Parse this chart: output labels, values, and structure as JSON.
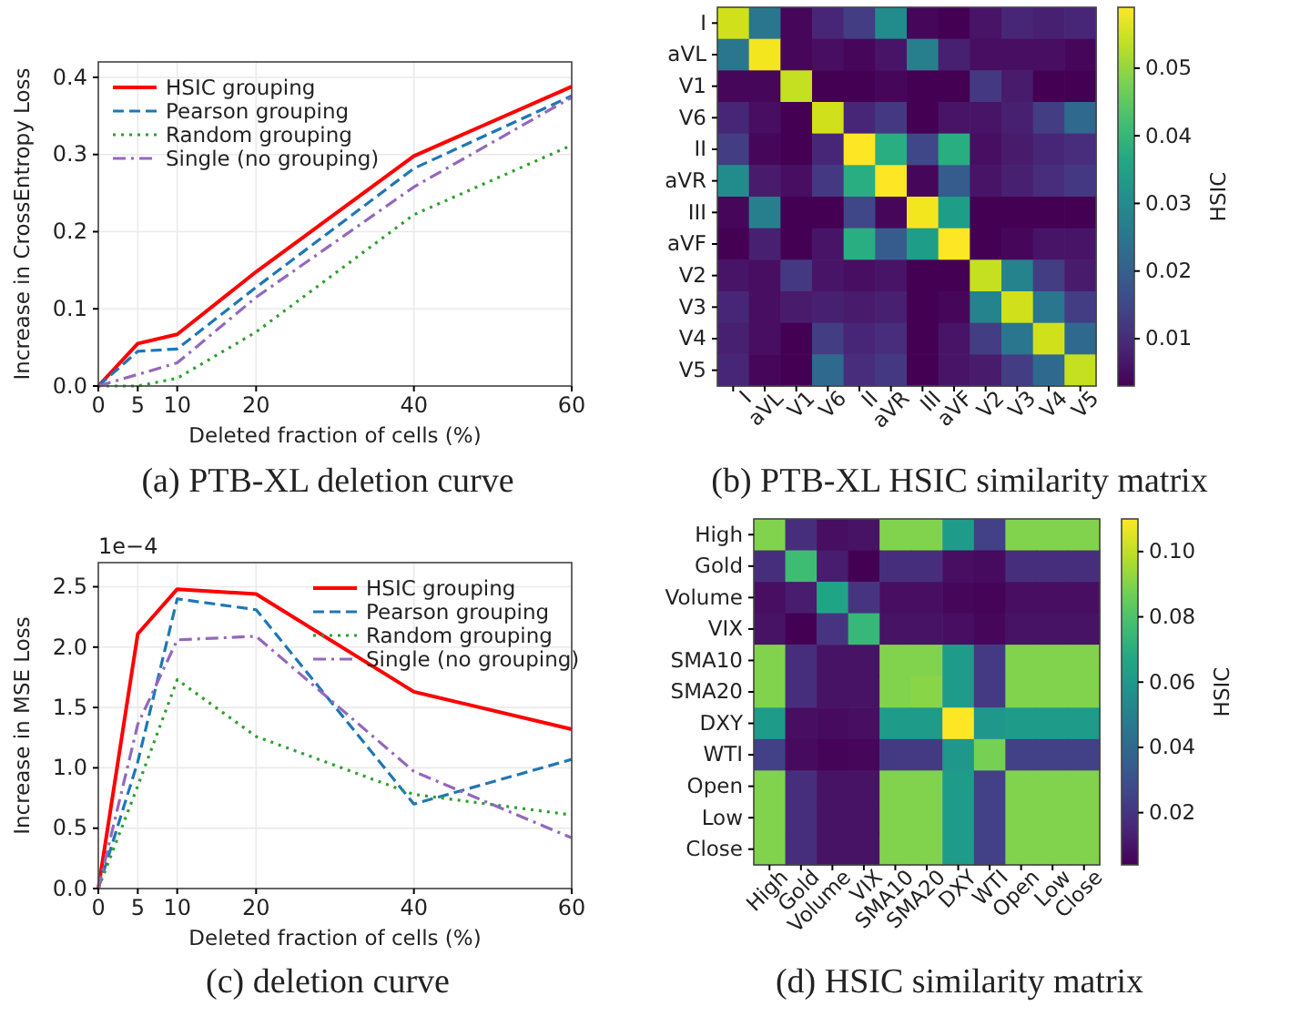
{
  "chart_data": [
    {
      "type": "line",
      "title": "(a) PTB-XL deletion curve",
      "xlabel": "Deleted fraction of cells (%)",
      "ylabel": "Increase in CrossEntropy Loss",
      "x": [
        0,
        5,
        10,
        20,
        40,
        60
      ],
      "xlim": [
        0,
        60
      ],
      "xticks": [
        0,
        5,
        10,
        20,
        40,
        60
      ],
      "ylim": [
        0,
        0.42
      ],
      "yticks": [
        {
          "value": 0,
          "label": "0.0"
        },
        0.1,
        0.2,
        0.3,
        0.4
      ],
      "grid": true,
      "legend": "top left",
      "series": [
        {
          "name": "HSIC grouping",
          "color": "#ff0000",
          "line_style": "solid",
          "values": [
            0,
            0.055,
            0.067,
            0.148,
            0.298,
            0.388
          ]
        },
        {
          "name": "Pearson grouping",
          "color": "#1f77b4",
          "line_style": "dashed",
          "values": [
            0,
            0.045,
            0.048,
            0.128,
            0.282,
            0.376
          ]
        },
        {
          "name": "Random grouping",
          "color": "#2ca02c",
          "line_style": "dotted",
          "values": [
            0,
            0,
            0.01,
            0.07,
            0.222,
            0.312
          ]
        },
        {
          "name": "Single (no grouping)",
          "color": "#9467bd",
          "line_style": "dashdot",
          "values": [
            0,
            0.015,
            0.03,
            0.115,
            0.258,
            0.374
          ]
        }
      ]
    },
    {
      "type": "heatmap",
      "title": "(b) PTB-XL HSIC similarity matrix",
      "clabel": "HSIC",
      "clim": [
        0.003,
        0.059
      ],
      "cticks": [
        0.01,
        0.02,
        0.03,
        0.04,
        0.05
      ],
      "categories": [
        "I",
        "aVL",
        "V1",
        "V6",
        "II",
        "aVR",
        "III",
        "aVF",
        "V2",
        "V3",
        "V4",
        "V5"
      ],
      "y_categories": [
        "I",
        "aVL",
        "V1",
        "V6",
        "II",
        "aVR",
        "III",
        "aVF",
        "V2",
        "V3",
        "V4",
        "V5"
      ],
      "cells": [
        [
          0.055,
          0.025,
          0.004,
          0.009,
          0.013,
          0.03,
          0.004,
          0.003,
          0.006,
          0.009,
          0.008,
          0.009
        ],
        [
          0.025,
          0.058,
          0.004,
          0.005,
          0.004,
          0.006,
          0.027,
          0.008,
          0.005,
          0.005,
          0.005,
          0.004
        ],
        [
          0.004,
          0.004,
          0.054,
          0.003,
          0.003,
          0.004,
          0.003,
          0.003,
          0.012,
          0.007,
          0.003,
          0.003
        ],
        [
          0.009,
          0.005,
          0.003,
          0.055,
          0.009,
          0.012,
          0.003,
          0.006,
          0.006,
          0.008,
          0.013,
          0.022
        ],
        [
          0.013,
          0.004,
          0.003,
          0.009,
          0.059,
          0.038,
          0.015,
          0.038,
          0.005,
          0.007,
          0.009,
          0.01
        ],
        [
          0.03,
          0.007,
          0.005,
          0.012,
          0.038,
          0.059,
          0.004,
          0.019,
          0.006,
          0.008,
          0.01,
          0.012
        ],
        [
          0.004,
          0.027,
          0.003,
          0.003,
          0.015,
          0.004,
          0.058,
          0.034,
          0.003,
          0.003,
          0.003,
          0.003
        ],
        [
          0.003,
          0.008,
          0.003,
          0.006,
          0.038,
          0.019,
          0.034,
          0.059,
          0.003,
          0.004,
          0.006,
          0.006
        ],
        [
          0.006,
          0.005,
          0.012,
          0.006,
          0.005,
          0.006,
          0.003,
          0.003,
          0.054,
          0.028,
          0.013,
          0.007
        ],
        [
          0.009,
          0.005,
          0.007,
          0.008,
          0.007,
          0.008,
          0.003,
          0.004,
          0.028,
          0.055,
          0.025,
          0.013
        ],
        [
          0.008,
          0.005,
          0.003,
          0.013,
          0.009,
          0.01,
          0.003,
          0.006,
          0.013,
          0.025,
          0.055,
          0.022
        ],
        [
          0.009,
          0.004,
          0.003,
          0.022,
          0.01,
          0.012,
          0.003,
          0.006,
          0.007,
          0.013,
          0.022,
          0.054
        ]
      ]
    },
    {
      "type": "line",
      "title": "(c) deletion curve",
      "xlabel": "Deleted fraction of cells (%)",
      "ylabel": "Increase in MSE Loss",
      "annotations": [
        "1e−4"
      ],
      "x": [
        0,
        5,
        10,
        20,
        40,
        60
      ],
      "xlim": [
        0,
        60
      ],
      "xticks": [
        0,
        5,
        10,
        20,
        40,
        60
      ],
      "ylim": [
        0,
        2.7
      ],
      "yticks": [
        {
          "value": 0,
          "label": "0.0"
        },
        0.5,
        {
          "value": 1,
          "label": "1.0"
        },
        1.5,
        {
          "value": 2,
          "label": "2.0"
        },
        2.5
      ],
      "grid": true,
      "legend": "top right",
      "series": [
        {
          "name": "HSIC grouping",
          "color": "#ff0000",
          "line_style": "solid",
          "values": [
            0,
            2.11,
            2.48,
            2.44,
            1.63,
            1.32
          ]
        },
        {
          "name": "Pearson grouping",
          "color": "#1f77b4",
          "line_style": "dashed",
          "values": [
            0,
            1.05,
            2.4,
            2.31,
            0.7,
            1.07
          ]
        },
        {
          "name": "Random grouping",
          "color": "#2ca02c",
          "line_style": "dotted",
          "values": [
            0,
            0.85,
            1.73,
            1.26,
            0.78,
            0.61
          ]
        },
        {
          "name": "Single (no grouping)",
          "color": "#9467bd",
          "line_style": "dashdot",
          "values": [
            0,
            1.36,
            2.06,
            2.09,
            0.97,
            0.42
          ]
        }
      ]
    },
    {
      "type": "heatmap",
      "title": "(d) HSIC similarity matrix",
      "clabel": "HSIC",
      "clim": [
        0.004,
        0.11
      ],
      "cticks": [
        0.02,
        0.04,
        0.06,
        0.08,
        {
          "value": 0.1,
          "label": "0.10"
        }
      ],
      "categories": [
        "High",
        "Gold",
        "Volume",
        "VIX",
        "SMA10",
        "SMA20",
        "DXY",
        "WTI",
        "Open",
        "Low",
        "Close"
      ],
      "y_categories": [
        "High",
        "Gold",
        "Volume",
        "VIX",
        "SMA10",
        "SMA20",
        "DXY",
        "WTI",
        "Open",
        "Low",
        "Close"
      ],
      "cells": [
        [
          0.09,
          0.018,
          0.008,
          0.009,
          0.09,
          0.09,
          0.062,
          0.024,
          0.09,
          0.09,
          0.09
        ],
        [
          0.018,
          0.077,
          0.012,
          0.004,
          0.018,
          0.018,
          0.008,
          0.007,
          0.018,
          0.018,
          0.018
        ],
        [
          0.008,
          0.012,
          0.066,
          0.02,
          0.008,
          0.008,
          0.006,
          0.005,
          0.008,
          0.008,
          0.008
        ],
        [
          0.009,
          0.004,
          0.02,
          0.075,
          0.009,
          0.009,
          0.008,
          0.006,
          0.009,
          0.009,
          0.009
        ],
        [
          0.09,
          0.018,
          0.009,
          0.009,
          0.09,
          0.09,
          0.062,
          0.022,
          0.09,
          0.09,
          0.09
        ],
        [
          0.09,
          0.018,
          0.009,
          0.009,
          0.09,
          0.091,
          0.062,
          0.022,
          0.09,
          0.09,
          0.09
        ],
        [
          0.062,
          0.008,
          0.007,
          0.008,
          0.062,
          0.062,
          0.11,
          0.06,
          0.062,
          0.062,
          0.062
        ],
        [
          0.024,
          0.007,
          0.005,
          0.006,
          0.022,
          0.022,
          0.06,
          0.088,
          0.024,
          0.024,
          0.024
        ],
        [
          0.09,
          0.018,
          0.009,
          0.009,
          0.09,
          0.09,
          0.062,
          0.024,
          0.09,
          0.09,
          0.09
        ],
        [
          0.09,
          0.018,
          0.009,
          0.009,
          0.09,
          0.09,
          0.062,
          0.024,
          0.09,
          0.09,
          0.09
        ],
        [
          0.09,
          0.018,
          0.009,
          0.009,
          0.09,
          0.09,
          0.062,
          0.024,
          0.09,
          0.09,
          0.09
        ]
      ]
    }
  ]
}
